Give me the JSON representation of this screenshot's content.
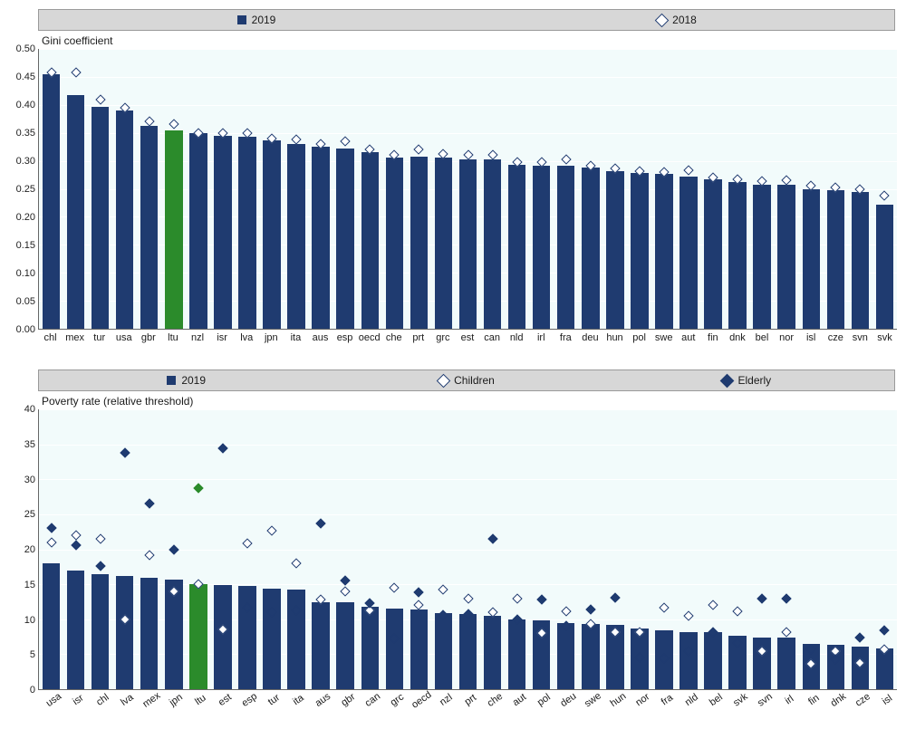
{
  "colors": {
    "bar_default": "#1f3b70",
    "bar_highlight": "#2b8b2b",
    "marker_border": "#1f3b70",
    "marker_open_fill": "#ffffff",
    "marker_solid_fill": "#1f3b70",
    "plot_bg": "#f2fbfb",
    "gridline": "#ffffff",
    "legend_bg": "#d7d7d7"
  },
  "chart1": {
    "type": "bar+scatter",
    "subtitle": "Gini coefficient",
    "highlight_key": "ltu",
    "legend": [
      {
        "kind": "bar",
        "label": "2019"
      },
      {
        "kind": "diamond_open",
        "label": "2018"
      }
    ],
    "ylim": [
      0.0,
      0.5
    ],
    "ytick_step": 0.05,
    "y_decimals": 2,
    "x_labels_rotate": false,
    "data": [
      {
        "key": "chl",
        "v2019": 0.455,
        "v2018": 0.458
      },
      {
        "key": "mex",
        "v2019": 0.418,
        "v2018": 0.458
      },
      {
        "key": "tur",
        "v2019": 0.397,
        "v2018": 0.41
      },
      {
        "key": "usa",
        "v2019": 0.39,
        "v2018": 0.395
      },
      {
        "key": "gbr",
        "v2019": 0.363,
        "v2018": 0.37
      },
      {
        "key": "ltu",
        "v2019": 0.354,
        "v2018": 0.365
      },
      {
        "key": "nzl",
        "v2019": 0.349,
        "v2018": 0.35
      },
      {
        "key": "isr",
        "v2019": 0.345,
        "v2018": 0.35
      },
      {
        "key": "lva",
        "v2019": 0.343,
        "v2018": 0.35
      },
      {
        "key": "jpn",
        "v2019": 0.337,
        "v2018": 0.34
      },
      {
        "key": "ita",
        "v2019": 0.33,
        "v2018": 0.338
      },
      {
        "key": "aus",
        "v2019": 0.325,
        "v2018": 0.33
      },
      {
        "key": "esp",
        "v2019": 0.322,
        "v2018": 0.335
      },
      {
        "key": "oecd",
        "v2019": 0.315,
        "v2018": 0.32
      },
      {
        "key": "che",
        "v2019": 0.306,
        "v2018": 0.31
      },
      {
        "key": "prt",
        "v2019": 0.308,
        "v2018": 0.32
      },
      {
        "key": "grc",
        "v2019": 0.306,
        "v2018": 0.312
      },
      {
        "key": "est",
        "v2019": 0.303,
        "v2018": 0.31
      },
      {
        "key": "can",
        "v2019": 0.302,
        "v2018": 0.31
      },
      {
        "key": "nld",
        "v2019": 0.293,
        "v2018": 0.297
      },
      {
        "key": "irl",
        "v2019": 0.291,
        "v2018": 0.298
      },
      {
        "key": "fra",
        "v2019": 0.291,
        "v2018": 0.303
      },
      {
        "key": "deu",
        "v2019": 0.288,
        "v2018": 0.292
      },
      {
        "key": "hun",
        "v2019": 0.282,
        "v2018": 0.287
      },
      {
        "key": "pol",
        "v2019": 0.278,
        "v2018": 0.282
      },
      {
        "key": "swe",
        "v2019": 0.276,
        "v2018": 0.28
      },
      {
        "key": "aut",
        "v2019": 0.272,
        "v2018": 0.284
      },
      {
        "key": "fin",
        "v2019": 0.267,
        "v2018": 0.27
      },
      {
        "key": "dnk",
        "v2019": 0.262,
        "v2018": 0.267
      },
      {
        "key": "bel",
        "v2019": 0.258,
        "v2018": 0.263
      },
      {
        "key": "nor",
        "v2019": 0.257,
        "v2018": 0.265
      },
      {
        "key": "isl",
        "v2019": 0.249,
        "v2018": 0.255
      },
      {
        "key": "cze",
        "v2019": 0.248,
        "v2018": 0.252
      },
      {
        "key": "svn",
        "v2019": 0.245,
        "v2018": 0.25
      },
      {
        "key": "svk",
        "v2019": 0.221,
        "v2018": 0.238
      }
    ]
  },
  "chart2": {
    "type": "bar+scatter2",
    "subtitle": "Poverty rate (relative threshold)",
    "highlight_key": "ltu",
    "legend": [
      {
        "kind": "bar",
        "label": "2019"
      },
      {
        "kind": "diamond_open",
        "label": "Children"
      },
      {
        "kind": "diamond_solid",
        "label": "Elderly"
      }
    ],
    "ylim": [
      0,
      40
    ],
    "ytick_step": 5,
    "y_decimals": 0,
    "x_labels_rotate": true,
    "data": [
      {
        "key": "usa",
        "v2019": 18.0,
        "children": 21.0,
        "elderly": 23.0
      },
      {
        "key": "isr",
        "v2019": 16.9,
        "children": 22.0,
        "elderly": 20.6
      },
      {
        "key": "chl",
        "v2019": 16.5,
        "children": 21.5,
        "elderly": 17.6
      },
      {
        "key": "lva",
        "v2019": 16.2,
        "children": 10.0,
        "elderly": 33.8
      },
      {
        "key": "mex",
        "v2019": 15.9,
        "children": 19.2,
        "elderly": 26.6
      },
      {
        "key": "jpn",
        "v2019": 15.7,
        "children": 14.0,
        "elderly": 20.0
      },
      {
        "key": "ltu",
        "v2019": 15.0,
        "children": 15.0,
        "elderly": 28.7
      },
      {
        "key": "est",
        "v2019": 14.9,
        "children": 8.6,
        "elderly": 34.5
      },
      {
        "key": "esp",
        "v2019": 14.7,
        "children": 20.9,
        "elderly": 11.6
      },
      {
        "key": "tur",
        "v2019": 14.4,
        "children": 22.7,
        "elderly": 11.0
      },
      {
        "key": "ita",
        "v2019": 14.2,
        "children": 18.0,
        "elderly": 11.2
      },
      {
        "key": "aus",
        "v2019": 12.4,
        "children": 12.8,
        "elderly": 23.7
      },
      {
        "key": "gbr",
        "v2019": 12.4,
        "children": 14.0,
        "elderly": 15.5
      },
      {
        "key": "can",
        "v2019": 11.8,
        "children": 11.2,
        "elderly": 12.3
      },
      {
        "key": "grc",
        "v2019": 11.5,
        "children": 14.5,
        "elderly": 7.2
      },
      {
        "key": "oecd",
        "v2019": 11.4,
        "children": 12.0,
        "elderly": 13.9
      },
      {
        "key": "nzl",
        "v2019": 10.9,
        "children": 14.3,
        "elderly": 10.6
      },
      {
        "key": "prt",
        "v2019": 10.8,
        "children": 13.0,
        "elderly": 10.8
      },
      {
        "key": "che",
        "v2019": 10.5,
        "children": 11.0,
        "elderly": 21.5
      },
      {
        "key": "aut",
        "v2019": 10.0,
        "children": 13.0,
        "elderly": 10.0
      },
      {
        "key": "pol",
        "v2019": 9.8,
        "children": 8.0,
        "elderly": 12.8
      },
      {
        "key": "deu",
        "v2019": 9.4,
        "children": 11.1,
        "elderly": 9.1
      },
      {
        "key": "swe",
        "v2019": 9.3,
        "children": 9.3,
        "elderly": 11.4
      },
      {
        "key": "hun",
        "v2019": 9.2,
        "children": 8.1,
        "elderly": 13.1
      },
      {
        "key": "nor",
        "v2019": 8.7,
        "children": 8.2,
        "elderly": 4.5
      },
      {
        "key": "fra",
        "v2019": 8.4,
        "children": 11.7,
        "elderly": 4.4
      },
      {
        "key": "nld",
        "v2019": 8.2,
        "children": 10.5,
        "elderly": 5.4
      },
      {
        "key": "bel",
        "v2019": 8.2,
        "children": 12.0,
        "elderly": 8.2
      },
      {
        "key": "svk",
        "v2019": 7.7,
        "children": 11.1,
        "elderly": 6.6
      },
      {
        "key": "svn",
        "v2019": 7.4,
        "children": 5.5,
        "elderly": 12.9
      },
      {
        "key": "irl",
        "v2019": 7.4,
        "children": 8.2,
        "elderly": 12.9
      },
      {
        "key": "fin",
        "v2019": 6.5,
        "children": 3.6,
        "elderly": 5.7
      },
      {
        "key": "dnk",
        "v2019": 6.4,
        "children": 5.4,
        "elderly": 4.3
      },
      {
        "key": "cze",
        "v2019": 6.1,
        "children": 3.8,
        "elderly": 7.4
      },
      {
        "key": "isl",
        "v2019": 5.8,
        "children": 5.7,
        "elderly": 8.4
      }
    ]
  }
}
